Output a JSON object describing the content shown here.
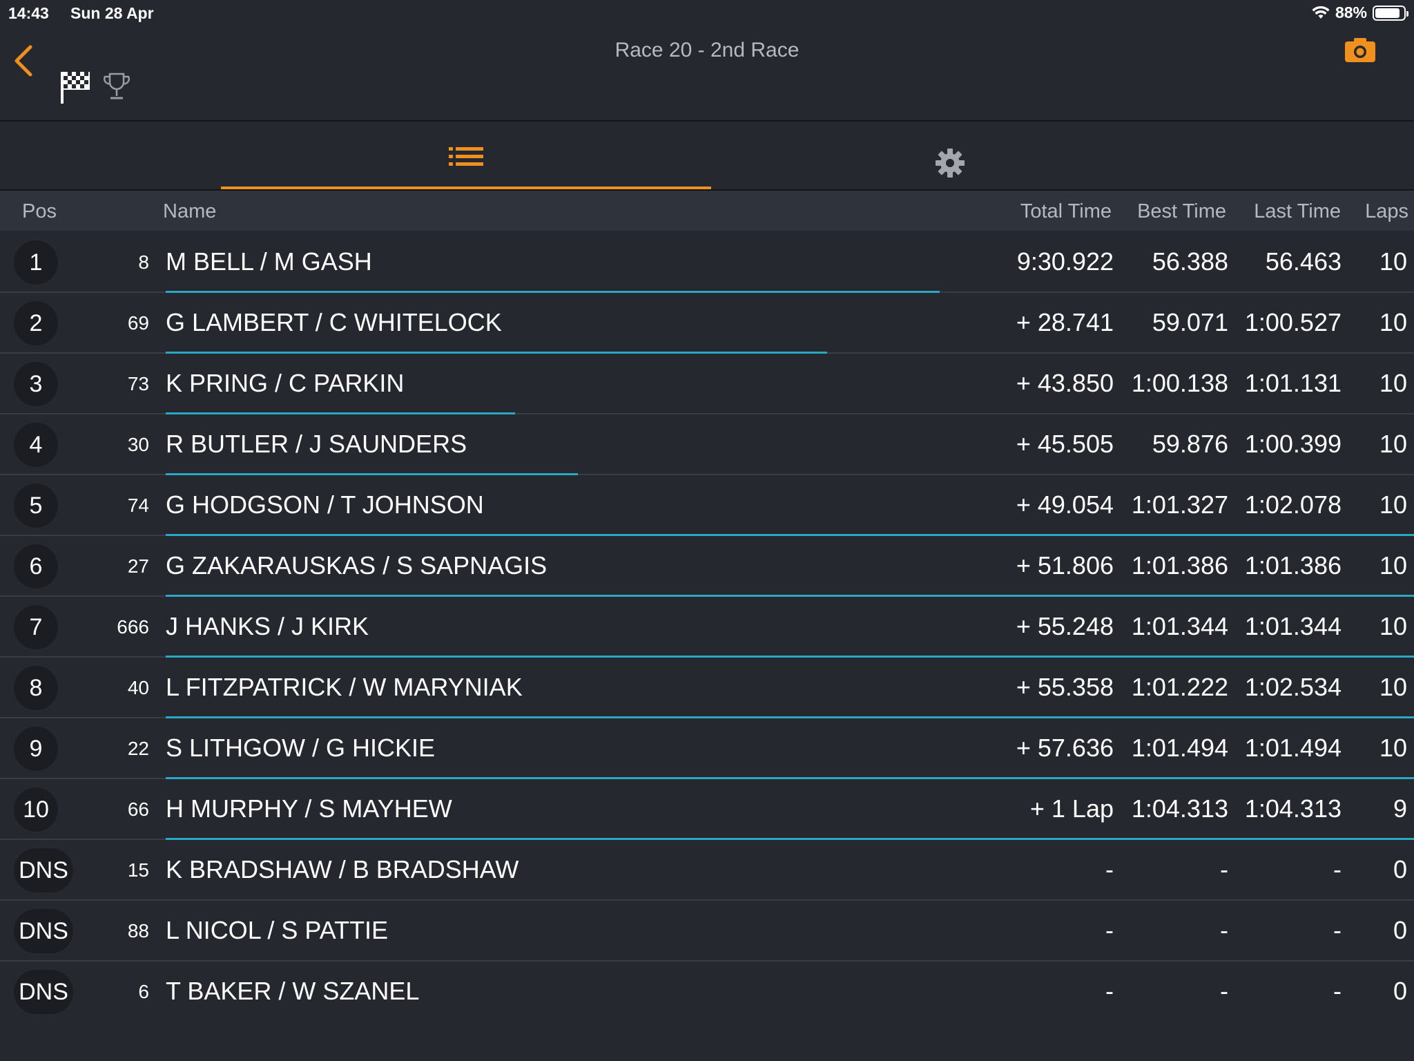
{
  "status_bar": {
    "time": "14:43",
    "date": "Sun 28 Apr",
    "battery": "88%"
  },
  "nav": {
    "title": "Race 20 - 2nd Race"
  },
  "icons": {
    "back": "chevron-left-icon",
    "flag": "checkered-flag-icon",
    "trophy": "trophy-icon",
    "camera": "camera-icon",
    "list": "list-icon",
    "settings": "gear-icon",
    "wifi": "wifi-icon"
  },
  "colors": {
    "accent": "#f0901f",
    "gap_line": "#2aa9c4",
    "background": "#25282f"
  },
  "tabs": {
    "active": "list"
  },
  "columns": {
    "pos": "Pos",
    "name": "Name",
    "total": "Total Time",
    "best": "Best Time",
    "last": "Last Time",
    "laps": "Laps"
  },
  "results": [
    {
      "pos": "1",
      "kart": "8",
      "name": "M BELL / M GASH",
      "total": "9:30.922",
      "best": "56.388",
      "last": "56.463",
      "laps": "10",
      "gap_fill": 0.62
    },
    {
      "pos": "2",
      "kart": "69",
      "name": "G LAMBERT / C WHITELOCK",
      "total": "+ 28.741",
      "best": "59.071",
      "last": "1:00.527",
      "laps": "10",
      "gap_fill": 0.53
    },
    {
      "pos": "3",
      "kart": "73",
      "name": "K PRING / C PARKIN",
      "total": "+ 43.850",
      "best": "1:00.138",
      "last": "1:01.131",
      "laps": "10",
      "gap_fill": 0.28
    },
    {
      "pos": "4",
      "kart": "30",
      "name": "R BUTLER / J SAUNDERS",
      "total": "+ 45.505",
      "best": "59.876",
      "last": "1:00.399",
      "laps": "10",
      "gap_fill": 0.33
    },
    {
      "pos": "5",
      "kart": "74",
      "name": "G HODGSON / T JOHNSON",
      "total": "+ 49.054",
      "best": "1:01.327",
      "last": "1:02.078",
      "laps": "10",
      "gap_fill": 1.0
    },
    {
      "pos": "6",
      "kart": "27",
      "name": "G ZAKARAUSKAS / S SAPNAGIS",
      "total": "+ 51.806",
      "best": "1:01.386",
      "last": "1:01.386",
      "laps": "10",
      "gap_fill": 1.0
    },
    {
      "pos": "7",
      "kart": "666",
      "name": "J HANKS / J KIRK",
      "total": "+ 55.248",
      "best": "1:01.344",
      "last": "1:01.344",
      "laps": "10",
      "gap_fill": 1.0
    },
    {
      "pos": "8",
      "kart": "40",
      "name": "L FITZPATRICK / W MARYNIAK",
      "total": "+ 55.358",
      "best": "1:01.222",
      "last": "1:02.534",
      "laps": "10",
      "gap_fill": 1.0
    },
    {
      "pos": "9",
      "kart": "22",
      "name": "S LITHGOW / G HICKIE",
      "total": "+ 57.636",
      "best": "1:01.494",
      "last": "1:01.494",
      "laps": "10",
      "gap_fill": 1.0
    },
    {
      "pos": "10",
      "kart": "66",
      "name": "H MURPHY / S MAYHEW",
      "total": "+ 1 Lap",
      "best": "1:04.313",
      "last": "1:04.313",
      "laps": "9",
      "gap_fill": 1.0
    },
    {
      "pos": "DNS",
      "kart": "15",
      "name": "K BRADSHAW / B BRADSHAW",
      "total": "-",
      "best": "-",
      "last": "-",
      "laps": "0",
      "gap_fill": 0
    },
    {
      "pos": "DNS",
      "kart": "88",
      "name": "L NICOL / S PATTIE",
      "total": "-",
      "best": "-",
      "last": "-",
      "laps": "0",
      "gap_fill": 0
    },
    {
      "pos": "DNS",
      "kart": "6",
      "name": "T BAKER / W SZANEL",
      "total": "-",
      "best": "-",
      "last": "-",
      "laps": "0",
      "gap_fill": 0
    }
  ]
}
